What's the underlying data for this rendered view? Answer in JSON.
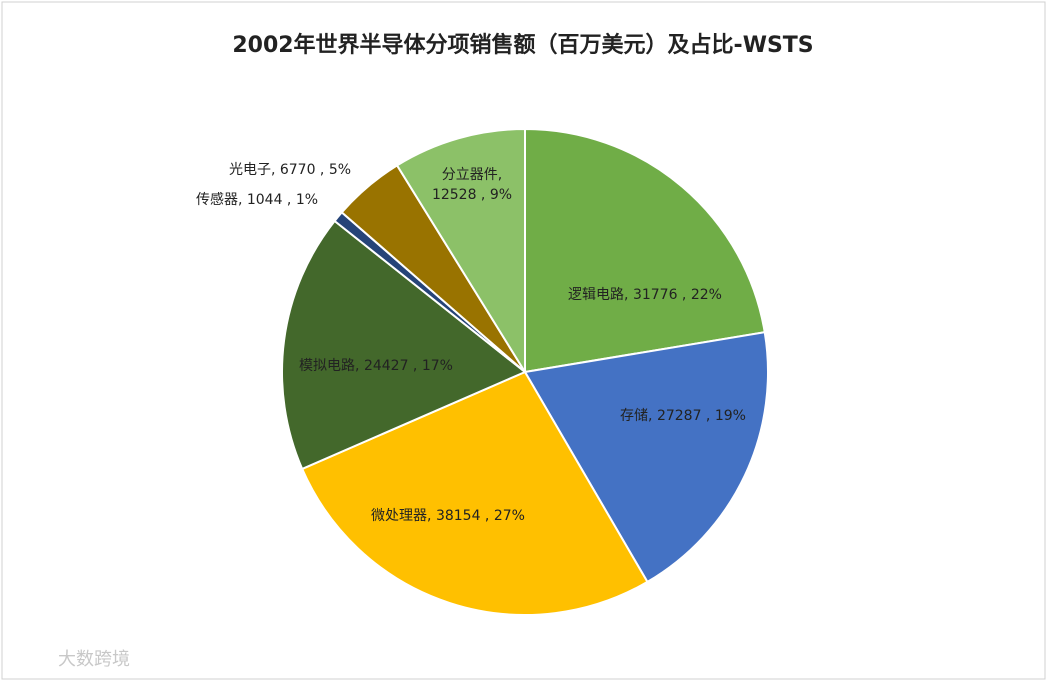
{
  "chart_data": {
    "type": "pie",
    "title": "2002年世界半导体分项销售额（百万美元）及占比-WSTS",
    "categories": [
      "逻辑电路",
      "存储",
      "微处理器",
      "模拟电路",
      "传感器",
      "光电子",
      "分立器件"
    ],
    "values": [
      31776,
      27287,
      38154,
      24427,
      1044,
      6770,
      12528
    ],
    "value_labels": [
      "逻辑电路, 31776 , 22%",
      "存储, 27287 , 19%",
      "微处理器, 38154 , 27%",
      "模拟电路, 24427 , 17%",
      "传感器, 1044 , 1%",
      "光电子, 6770 , 5%",
      [
        "分立器件,",
        "12528 , 9%"
      ]
    ],
    "colors": [
      "#70ad47",
      "#4472c4",
      "#ffc000",
      "#43682b",
      "#264478",
      "#997300",
      "#8cc168"
    ]
  },
  "watermark": "大数跨境"
}
